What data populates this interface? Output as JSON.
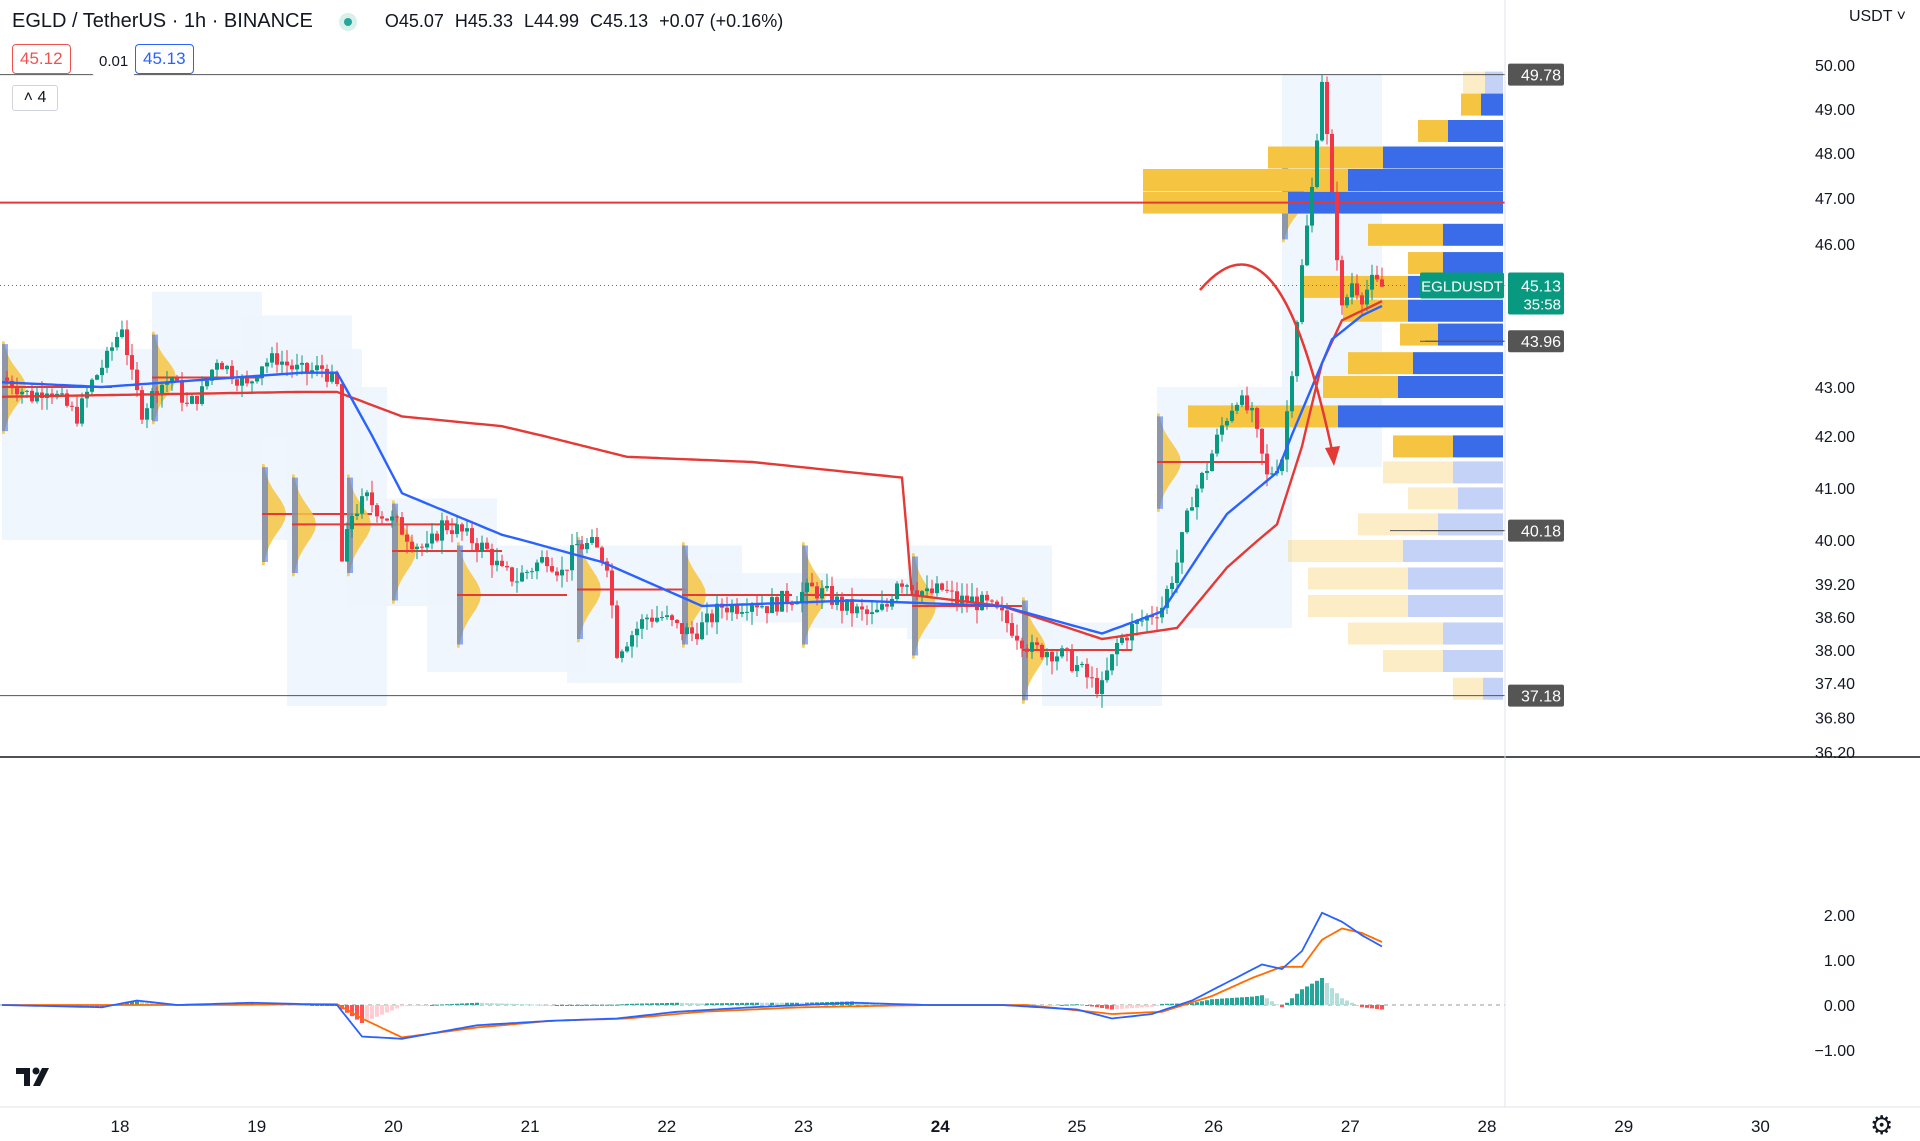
{
  "header": {
    "symbol": "EGLD / TetherUS · 1h · BINANCE",
    "open": "O45.07",
    "high": "H45.33",
    "low": "L44.99",
    "close": "C45.13",
    "change": "+0.07 (+0.16%)",
    "bid": "45.12",
    "spread": "0.01",
    "ask": "45.13",
    "indicator_count": "4"
  },
  "price_axis": {
    "currency": "USDT",
    "last_label": "EGLDUSDT",
    "last_price": "45.13",
    "countdown": "35:58"
  },
  "colors": {
    "up": "#089981",
    "down": "#f23645",
    "ema_fast": "#2962ff",
    "ema_slow": "#e53935",
    "vp_up": "#f5c542",
    "vp_down": "#3a6be8",
    "macd": "#2962ff",
    "signal": "#ff6d00"
  },
  "chart_data": {
    "type": "candlestick",
    "ylim": [
      36.2,
      50.0
    ],
    "y_ticks": [
      "50.00",
      "49.00",
      "48.00",
      "47.00",
      "46.00",
      "43.00",
      "42.00",
      "41.00",
      "40.00",
      "39.20",
      "38.60",
      "38.00",
      "37.40",
      "36.80",
      "36.20"
    ],
    "x_ticks": [
      "18",
      "19",
      "20",
      "21",
      "22",
      "23",
      "24",
      "25",
      "26",
      "27",
      "28",
      "29",
      "30"
    ],
    "levels": [
      {
        "price": 49.78,
        "label": "49.78"
      },
      {
        "price": 43.96,
        "label": "43.96"
      },
      {
        "price": 40.18,
        "label": "40.18"
      },
      {
        "price": 37.18,
        "label": "37.18"
      }
    ],
    "resistance": 46.9,
    "close_path": [
      [
        0,
        43.2
      ],
      [
        3,
        43.0
      ],
      [
        6,
        42.8
      ],
      [
        9,
        43.0
      ],
      [
        12,
        42.7
      ],
      [
        15,
        42.4
      ],
      [
        18,
        43.1
      ],
      [
        21,
        43.6
      ],
      [
        24,
        44.3
      ],
      [
        26,
        43.2
      ],
      [
        28,
        42.5
      ],
      [
        31,
        43.0
      ],
      [
        34,
        43.2
      ],
      [
        37,
        42.6
      ],
      [
        40,
        42.9
      ],
      [
        43,
        43.6
      ],
      [
        46,
        43.3
      ],
      [
        49,
        43.0
      ],
      [
        52,
        43.5
      ],
      [
        55,
        43.6
      ],
      [
        58,
        43.4
      ],
      [
        61,
        43.3
      ],
      [
        64,
        43.4
      ],
      [
        67,
        43.0
      ],
      [
        68,
        39.6
      ],
      [
        70,
        40.5
      ],
      [
        73,
        40.8
      ],
      [
        76,
        40.5
      ],
      [
        79,
        40.3
      ],
      [
        82,
        40.0
      ],
      [
        85,
        39.8
      ],
      [
        88,
        40.3
      ],
      [
        91,
        40.2
      ],
      [
        94,
        40.0
      ],
      [
        97,
        39.8
      ],
      [
        100,
        39.4
      ],
      [
        103,
        39.3
      ],
      [
        106,
        39.5
      ],
      [
        109,
        39.7
      ],
      [
        112,
        39.4
      ],
      [
        115,
        39.9
      ],
      [
        118,
        39.9
      ],
      [
        121,
        39.6
      ],
      [
        123,
        38.0
      ],
      [
        126,
        38.3
      ],
      [
        129,
        38.6
      ],
      [
        132,
        38.6
      ],
      [
        135,
        38.4
      ],
      [
        138,
        38.3
      ],
      [
        141,
        38.5
      ],
      [
        144,
        38.8
      ],
      [
        147,
        38.8
      ],
      [
        150,
        38.9
      ],
      [
        153,
        38.8
      ],
      [
        156,
        38.9
      ],
      [
        159,
        39.0
      ],
      [
        162,
        39.1
      ],
      [
        165,
        39.0
      ],
      [
        168,
        38.8
      ],
      [
        171,
        38.7
      ],
      [
        174,
        38.6
      ],
      [
        177,
        38.8
      ],
      [
        179,
        39.3
      ],
      [
        182,
        39.2
      ],
      [
        185,
        39.0
      ],
      [
        188,
        39.1
      ],
      [
        191,
        38.9
      ],
      [
        194,
        38.9
      ],
      [
        197,
        38.8
      ],
      [
        200,
        38.6
      ],
      [
        203,
        38.3
      ],
      [
        206,
        38.0
      ],
      [
        209,
        38.0
      ],
      [
        212,
        37.9
      ],
      [
        215,
        37.7
      ],
      [
        218,
        37.4
      ],
      [
        220,
        37.3
      ],
      [
        223,
        38.1
      ],
      [
        226,
        38.4
      ],
      [
        229,
        38.6
      ],
      [
        232,
        38.8
      ],
      [
        235,
        39.6
      ],
      [
        238,
        40.8
      ],
      [
        241,
        41.4
      ],
      [
        244,
        42.2
      ],
      [
        247,
        42.8
      ],
      [
        250,
        42.4
      ],
      [
        253,
        41.2
      ],
      [
        256,
        41.6
      ],
      [
        258,
        43.4
      ],
      [
        260,
        45.5
      ],
      [
        262,
        47.2
      ],
      [
        264,
        49.7
      ],
      [
        266,
        47.0
      ],
      [
        268,
        44.6
      ],
      [
        270,
        45.2
      ],
      [
        272,
        44.9
      ],
      [
        274,
        45.2
      ],
      [
        276,
        45.1
      ]
    ],
    "ema20": [
      [
        0,
        43.1
      ],
      [
        20,
        43.0
      ],
      [
        60,
        43.3
      ],
      [
        67,
        43.3
      ],
      [
        80,
        40.9
      ],
      [
        100,
        40.1
      ],
      [
        120,
        39.6
      ],
      [
        140,
        38.8
      ],
      [
        170,
        38.9
      ],
      [
        200,
        38.8
      ],
      [
        220,
        38.3
      ],
      [
        232,
        38.7
      ],
      [
        245,
        40.5
      ],
      [
        255,
        41.3
      ],
      [
        262,
        43.0
      ],
      [
        266,
        44.0
      ],
      [
        272,
        44.5
      ],
      [
        276,
        44.7
      ]
    ],
    "ema200": [
      [
        0,
        42.8
      ],
      [
        60,
        42.9
      ],
      [
        67,
        42.9
      ],
      [
        80,
        42.4
      ],
      [
        100,
        42.2
      ],
      [
        125,
        41.6
      ],
      [
        150,
        41.5
      ],
      [
        180,
        41.2
      ],
      [
        182,
        39.0
      ],
      [
        200,
        38.8
      ],
      [
        220,
        38.2
      ],
      [
        235,
        38.4
      ],
      [
        245,
        39.5
      ],
      [
        255,
        40.3
      ],
      [
        260,
        41.8
      ],
      [
        264,
        43.5
      ],
      [
        268,
        44.4
      ],
      [
        276,
        44.8
      ]
    ],
    "volume_profile": [
      {
        "price": 49.6,
        "up": 22,
        "down": 18
      },
      {
        "price": 49.1,
        "up": 20,
        "down": 22
      },
      {
        "price": 48.5,
        "up": 30,
        "down": 55
      },
      {
        "price": 47.9,
        "up": 115,
        "down": 120
      },
      {
        "price": 47.4,
        "up": 205,
        "down": 155
      },
      {
        "price": 46.9,
        "up": 145,
        "down": 215
      },
      {
        "price": 46.2,
        "up": 75,
        "down": 60
      },
      {
        "price": 45.6,
        "up": 35,
        "down": 60
      },
      {
        "price": 45.1,
        "up": 105,
        "down": 95
      },
      {
        "price": 44.6,
        "up": 65,
        "down": 95
      },
      {
        "price": 44.1,
        "up": 38,
        "down": 65
      },
      {
        "price": 43.5,
        "up": 65,
        "down": 90
      },
      {
        "price": 43.0,
        "up": 75,
        "down": 105
      },
      {
        "price": 42.4,
        "up": 150,
        "down": 165
      },
      {
        "price": 41.8,
        "up": 60,
        "down": 50
      },
      {
        "price": 41.3,
        "up": 70,
        "down": 50
      },
      {
        "price": 40.8,
        "up": 50,
        "down": 45
      },
      {
        "price": 40.3,
        "up": 80,
        "down": 65
      },
      {
        "price": 39.8,
        "up": 115,
        "down": 100
      },
      {
        "price": 39.3,
        "up": 100,
        "down": 95
      },
      {
        "price": 38.8,
        "up": 100,
        "down": 95
      },
      {
        "price": 38.3,
        "up": 95,
        "down": 60
      },
      {
        "price": 37.8,
        "up": 60,
        "down": 60
      },
      {
        "price": 37.3,
        "up": 30,
        "down": 20
      }
    ],
    "macd": {
      "ylim": [
        -1.0,
        2.0
      ],
      "y_ticks": [
        "2.00",
        "1.00",
        "0.00",
        "−1.00"
      ],
      "macd_line": [
        [
          0,
          0.0
        ],
        [
          20,
          -0.05
        ],
        [
          27,
          0.1
        ],
        [
          35,
          0.0
        ],
        [
          50,
          0.05
        ],
        [
          67,
          0.0
        ],
        [
          72,
          -0.7
        ],
        [
          80,
          -0.75
        ],
        [
          95,
          -0.45
        ],
        [
          110,
          -0.35
        ],
        [
          123,
          -0.3
        ],
        [
          135,
          -0.15
        ],
        [
          150,
          -0.05
        ],
        [
          170,
          0.05
        ],
        [
          185,
          0.0
        ],
        [
          200,
          0.0
        ],
        [
          215,
          -0.1
        ],
        [
          222,
          -0.3
        ],
        [
          230,
          -0.2
        ],
        [
          238,
          0.1
        ],
        [
          245,
          0.5
        ],
        [
          252,
          0.9
        ],
        [
          256,
          0.8
        ],
        [
          260,
          1.2
        ],
        [
          264,
          2.05
        ],
        [
          268,
          1.85
        ],
        [
          272,
          1.55
        ],
        [
          276,
          1.3
        ]
      ],
      "signal_line": [
        [
          0,
          0.0
        ],
        [
          25,
          0.0
        ],
        [
          40,
          0.0
        ],
        [
          67,
          0.02
        ],
        [
          72,
          -0.3
        ],
        [
          80,
          -0.72
        ],
        [
          95,
          -0.5
        ],
        [
          110,
          -0.35
        ],
        [
          125,
          -0.3
        ],
        [
          140,
          -0.15
        ],
        [
          160,
          -0.05
        ],
        [
          185,
          0.0
        ],
        [
          205,
          0.0
        ],
        [
          222,
          -0.2
        ],
        [
          232,
          -0.15
        ],
        [
          242,
          0.2
        ],
        [
          250,
          0.6
        ],
        [
          256,
          0.85
        ],
        [
          260,
          0.85
        ],
        [
          264,
          1.45
        ],
        [
          268,
          1.7
        ],
        [
          272,
          1.6
        ],
        [
          276,
          1.4
        ]
      ]
    }
  }
}
